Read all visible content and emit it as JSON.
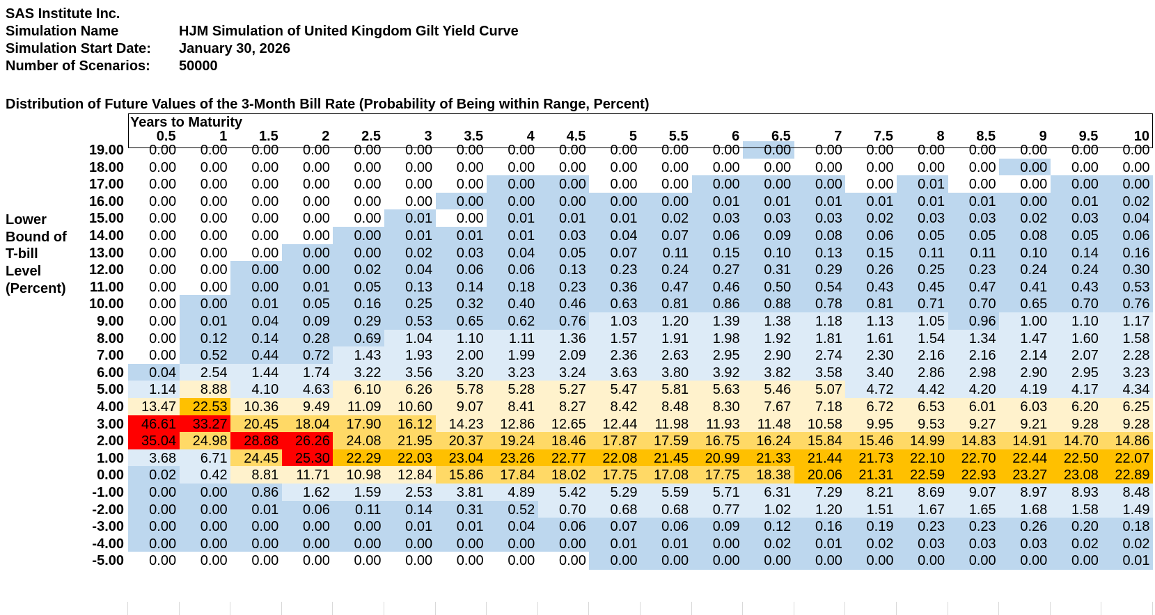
{
  "header": {
    "company": "SAS Institute Inc.",
    "sim_name_label": "Simulation Name",
    "sim_name_value": "HJM Simulation of United Kingdom Gilt Yield Curve",
    "start_date_label": "Simulation Start Date:",
    "start_date_value": "January 30, 2026",
    "scenarios_label": "Number of Scenarios:",
    "scenarios_value": "50000"
  },
  "table": {
    "title": "Distribution of Future Values of the 3-Month Bill Rate (Probability of Being within Range, Percent)",
    "column_group_label": "Years to Maturity",
    "row_group_label": [
      "Lower",
      "Bound of",
      "T-bill",
      "Level",
      "(Percent)"
    ],
    "columns": [
      "0.5",
      "1",
      "1.5",
      "2",
      "2.5",
      "3",
      "3.5",
      "4",
      "4.5",
      "5",
      "5.5",
      "6",
      "6.5",
      "7",
      "7.5",
      "8",
      "8.5",
      "9",
      "9.5",
      "10"
    ],
    "rows": [
      {
        "bound": "19.00",
        "values": [
          "0.00",
          "0.00",
          "0.00",
          "0.00",
          "0.00",
          "0.00",
          "0.00",
          "0.00",
          "0.00",
          "0.00",
          "0.00",
          "0.00",
          "0.00",
          "0.00",
          "0.00",
          "0.00",
          "0.00",
          "0.00",
          "0.00",
          "0.00"
        ]
      },
      {
        "bound": "18.00",
        "values": [
          "0.00",
          "0.00",
          "0.00",
          "0.00",
          "0.00",
          "0.00",
          "0.00",
          "0.00",
          "0.00",
          "0.00",
          "0.00",
          "0.00",
          "0.00",
          "0.00",
          "0.00",
          "0.00",
          "0.00",
          "0.00",
          "0.00",
          "0.00"
        ]
      },
      {
        "bound": "17.00",
        "values": [
          "0.00",
          "0.00",
          "0.00",
          "0.00",
          "0.00",
          "0.00",
          "0.00",
          "0.00",
          "0.00",
          "0.00",
          "0.00",
          "0.00",
          "0.00",
          "0.00",
          "0.00",
          "0.01",
          "0.00",
          "0.00",
          "0.00",
          "0.00"
        ]
      },
      {
        "bound": "16.00",
        "values": [
          "0.00",
          "0.00",
          "0.00",
          "0.00",
          "0.00",
          "0.00",
          "0.00",
          "0.00",
          "0.00",
          "0.00",
          "0.00",
          "0.01",
          "0.01",
          "0.01",
          "0.01",
          "0.01",
          "0.01",
          "0.00",
          "0.01",
          "0.02"
        ]
      },
      {
        "bound": "15.00",
        "values": [
          "0.00",
          "0.00",
          "0.00",
          "0.00",
          "0.00",
          "0.01",
          "0.00",
          "0.01",
          "0.01",
          "0.01",
          "0.02",
          "0.03",
          "0.03",
          "0.03",
          "0.02",
          "0.03",
          "0.03",
          "0.02",
          "0.03",
          "0.04"
        ]
      },
      {
        "bound": "14.00",
        "values": [
          "0.00",
          "0.00",
          "0.00",
          "0.00",
          "0.00",
          "0.01",
          "0.01",
          "0.01",
          "0.03",
          "0.04",
          "0.07",
          "0.06",
          "0.09",
          "0.08",
          "0.06",
          "0.05",
          "0.05",
          "0.08",
          "0.05",
          "0.06"
        ]
      },
      {
        "bound": "13.00",
        "values": [
          "0.00",
          "0.00",
          "0.00",
          "0.00",
          "0.00",
          "0.02",
          "0.03",
          "0.04",
          "0.05",
          "0.07",
          "0.11",
          "0.15",
          "0.10",
          "0.13",
          "0.15",
          "0.11",
          "0.11",
          "0.10",
          "0.14",
          "0.16"
        ]
      },
      {
        "bound": "12.00",
        "values": [
          "0.00",
          "0.00",
          "0.00",
          "0.00",
          "0.02",
          "0.04",
          "0.06",
          "0.06",
          "0.13",
          "0.23",
          "0.24",
          "0.27",
          "0.31",
          "0.29",
          "0.26",
          "0.25",
          "0.23",
          "0.24",
          "0.24",
          "0.30"
        ]
      },
      {
        "bound": "11.00",
        "values": [
          "0.00",
          "0.00",
          "0.00",
          "0.01",
          "0.05",
          "0.13",
          "0.14",
          "0.18",
          "0.23",
          "0.36",
          "0.47",
          "0.46",
          "0.50",
          "0.54",
          "0.43",
          "0.45",
          "0.47",
          "0.41",
          "0.43",
          "0.53"
        ]
      },
      {
        "bound": "10.00",
        "values": [
          "0.00",
          "0.00",
          "0.01",
          "0.05",
          "0.16",
          "0.25",
          "0.32",
          "0.40",
          "0.46",
          "0.63",
          "0.81",
          "0.86",
          "0.88",
          "0.78",
          "0.81",
          "0.71",
          "0.70",
          "0.65",
          "0.70",
          "0.76"
        ]
      },
      {
        "bound": "9.00",
        "values": [
          "0.00",
          "0.01",
          "0.04",
          "0.09",
          "0.29",
          "0.53",
          "0.65",
          "0.62",
          "0.76",
          "1.03",
          "1.20",
          "1.39",
          "1.38",
          "1.18",
          "1.13",
          "1.05",
          "0.96",
          "1.00",
          "1.10",
          "1.17"
        ]
      },
      {
        "bound": "8.00",
        "values": [
          "0.00",
          "0.12",
          "0.14",
          "0.28",
          "0.69",
          "1.04",
          "1.10",
          "1.11",
          "1.36",
          "1.57",
          "1.91",
          "1.98",
          "1.92",
          "1.81",
          "1.61",
          "1.54",
          "1.34",
          "1.47",
          "1.60",
          "1.58"
        ]
      },
      {
        "bound": "7.00",
        "values": [
          "0.00",
          "0.52",
          "0.44",
          "0.72",
          "1.43",
          "1.93",
          "2.00",
          "1.99",
          "2.09",
          "2.36",
          "2.63",
          "2.95",
          "2.90",
          "2.74",
          "2.30",
          "2.16",
          "2.16",
          "2.14",
          "2.07",
          "2.28"
        ]
      },
      {
        "bound": "6.00",
        "values": [
          "0.04",
          "2.54",
          "1.44",
          "1.74",
          "3.22",
          "3.56",
          "3.20",
          "3.23",
          "3.24",
          "3.63",
          "3.80",
          "3.92",
          "3.82",
          "3.58",
          "3.40",
          "2.86",
          "2.98",
          "2.90",
          "2.95",
          "3.23"
        ]
      },
      {
        "bound": "5.00",
        "values": [
          "1.14",
          "8.88",
          "4.10",
          "4.63",
          "6.10",
          "6.26",
          "5.78",
          "5.28",
          "5.27",
          "5.47",
          "5.81",
          "5.63",
          "5.46",
          "5.07",
          "4.72",
          "4.42",
          "4.20",
          "4.19",
          "4.17",
          "4.34"
        ]
      },
      {
        "bound": "4.00",
        "values": [
          "13.47",
          "22.53",
          "10.36",
          "9.49",
          "11.09",
          "10.60",
          "9.07",
          "8.41",
          "8.27",
          "8.42",
          "8.48",
          "8.30",
          "7.67",
          "7.18",
          "6.72",
          "6.53",
          "6.01",
          "6.03",
          "6.20",
          "6.25"
        ]
      },
      {
        "bound": "3.00",
        "values": [
          "46.61",
          "33.27",
          "20.45",
          "18.04",
          "17.90",
          "16.12",
          "14.23",
          "12.86",
          "12.65",
          "12.44",
          "11.98",
          "11.93",
          "11.48",
          "10.58",
          "9.95",
          "9.53",
          "9.27",
          "9.21",
          "9.28",
          "9.28"
        ]
      },
      {
        "bound": "2.00",
        "values": [
          "35.04",
          "24.98",
          "28.88",
          "26.26",
          "24.08",
          "21.95",
          "20.37",
          "19.24",
          "18.46",
          "17.87",
          "17.59",
          "16.75",
          "16.24",
          "15.84",
          "15.46",
          "14.99",
          "14.83",
          "14.91",
          "14.70",
          "14.86"
        ]
      },
      {
        "bound": "1.00",
        "values": [
          "3.68",
          "6.71",
          "24.45",
          "25.30",
          "22.29",
          "22.03",
          "23.04",
          "23.26",
          "22.77",
          "22.08",
          "21.45",
          "20.99",
          "21.33",
          "21.44",
          "21.73",
          "22.10",
          "22.70",
          "22.44",
          "22.50",
          "22.07"
        ]
      },
      {
        "bound": "0.00",
        "values": [
          "0.02",
          "0.42",
          "8.81",
          "11.71",
          "10.98",
          "12.84",
          "15.86",
          "17.84",
          "18.02",
          "17.75",
          "17.08",
          "17.75",
          "18.38",
          "20.06",
          "21.31",
          "22.59",
          "22.93",
          "23.27",
          "23.08",
          "22.89"
        ]
      },
      {
        "bound": "-1.00",
        "values": [
          "0.00",
          "0.00",
          "0.86",
          "1.62",
          "1.59",
          "2.53",
          "3.81",
          "4.89",
          "5.42",
          "5.29",
          "5.59",
          "5.71",
          "6.31",
          "7.29",
          "8.21",
          "8.69",
          "9.07",
          "8.97",
          "8.93",
          "8.48"
        ]
      },
      {
        "bound": "-2.00",
        "values": [
          "0.00",
          "0.00",
          "0.01",
          "0.06",
          "0.11",
          "0.14",
          "0.31",
          "0.52",
          "0.70",
          "0.68",
          "0.68",
          "0.77",
          "1.02",
          "1.20",
          "1.51",
          "1.67",
          "1.65",
          "1.68",
          "1.58",
          "1.49"
        ]
      },
      {
        "bound": "-3.00",
        "values": [
          "0.00",
          "0.00",
          "0.00",
          "0.00",
          "0.00",
          "0.01",
          "0.01",
          "0.04",
          "0.06",
          "0.07",
          "0.06",
          "0.09",
          "0.12",
          "0.16",
          "0.19",
          "0.23",
          "0.23",
          "0.26",
          "0.20",
          "0.18"
        ]
      },
      {
        "bound": "-4.00",
        "values": [
          "0.00",
          "0.00",
          "0.00",
          "0.00",
          "0.00",
          "0.00",
          "0.00",
          "0.00",
          "0.00",
          "0.01",
          "0.01",
          "0.00",
          "0.02",
          "0.01",
          "0.02",
          "0.03",
          "0.03",
          "0.03",
          "0.02",
          "0.02"
        ]
      },
      {
        "bound": "-5.00",
        "values": [
          "0.00",
          "0.00",
          "0.00",
          "0.00",
          "0.00",
          "0.00",
          "0.00",
          "0.00",
          "0.00",
          "0.00",
          "0.00",
          "0.00",
          "0.00",
          "0.00",
          "0.00",
          "0.00",
          "0.00",
          "0.00",
          "0.00",
          "0.01"
        ]
      }
    ],
    "shade_codes": [
      "WWWWWWWWWWWWBWWWWWWW",
      "WWWWWWWWWWWWWWWWWBWW",
      "WWWWWWWBBWWBBBWBWWBB",
      "WWWWWWBBBBBBBBBBBBBB",
      "WWWWWBWBBBBBBBBBBBBB",
      "WWWWBBBBBBBBBBBBBBBB",
      "WWWBBBBBBBBBBBBBBBBB",
      "WWBBBBBBBBBBBBBBBBBB",
      "WWBBBBBBBBBBBBBBBBBB",
      "WBBBBBBBBBBBBBBBBBBB",
      "WBBBBBBBBLLLLLLLBLLL",
      "WBBBBLLLLLLLLLLLLLLL",
      "WBBBLLLLLLLLLLLLLLLL",
      "BLLLLLLLLLLLLLLLLLLL",
      "LYLLYYYYYYYYYYLLLLLL",
      "YOYYYYYYYYYYYYYYYYYY",
      "RRMMMMYYYYYYYYYYYYYY",
      "RMRRMMMMMMMMMMMMMMMM",
      "LLMROOOOOOOOOOOOOOOO",
      "BLYYYYMMMMMMMOOOOOOO",
      "BBBLLLLLLLLLLLLLLLLL",
      "BBBBBBBBLLLLLLLLLLLL",
      "BBBBBBBBBBBBBBBBBBBB",
      "BBBBBBBBBBBBBBBBBBBB",
      "WWWWWWWWWBBBBBBBBBBB"
    ],
    "colors": {
      "W": "#ffffff",
      "B": "#bdd7ee",
      "L": "#ddebf7",
      "Y": "#fff2cc",
      "M": "#ffd966",
      "O": "#ffc000",
      "R": "#ff0000"
    }
  }
}
